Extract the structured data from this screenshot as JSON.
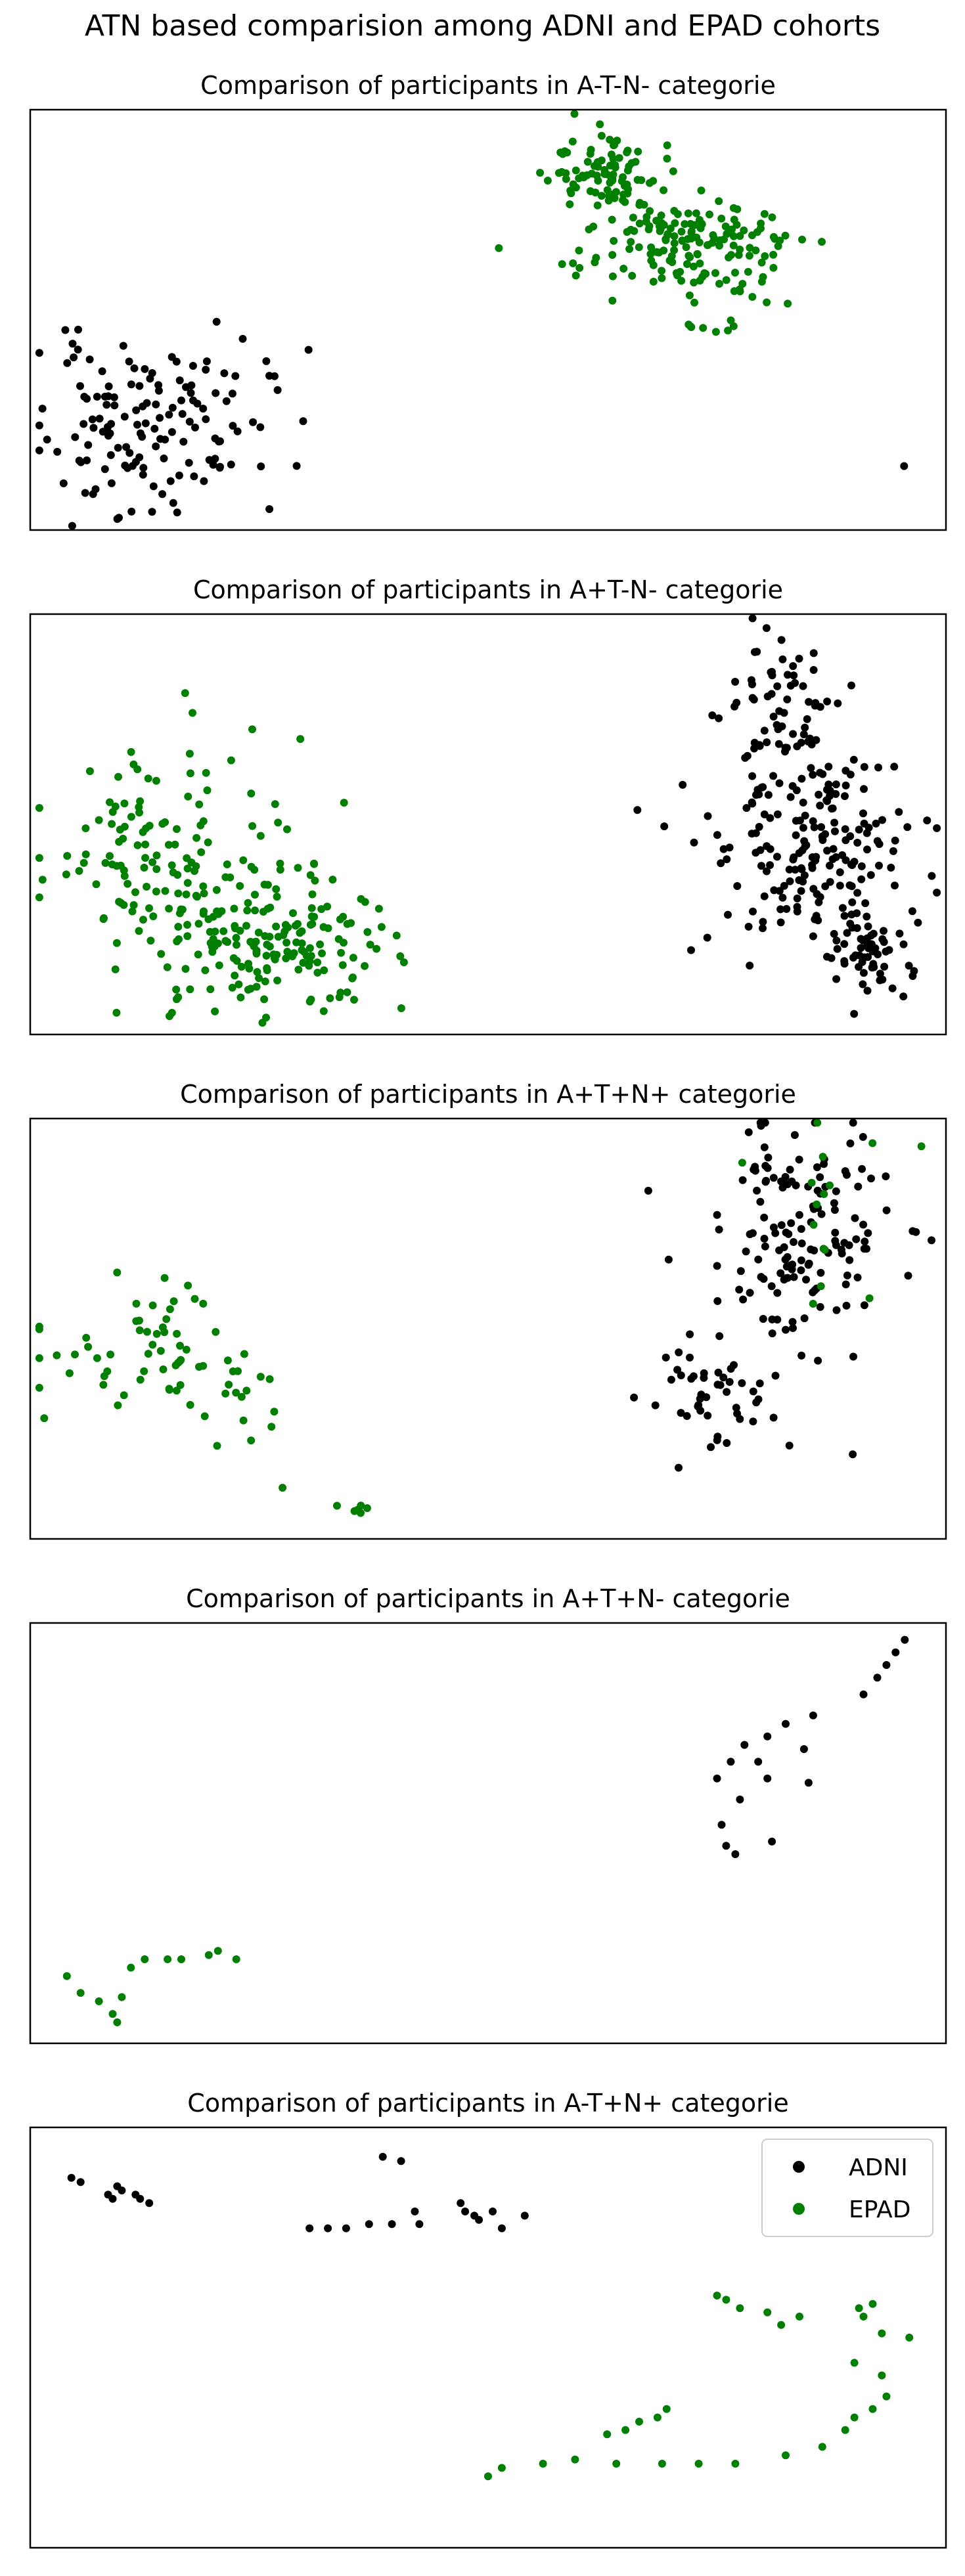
{
  "figure": {
    "title": "ATN based comparision among ADNI and EPAD cohorts"
  },
  "legend": {
    "items": [
      "ADNI",
      "EPAD"
    ],
    "placement": "upper-right"
  },
  "colors": {
    "ADNI": "#000000",
    "EPAD": "#007f00"
  },
  "chart_data": [
    {
      "type": "scatter",
      "title": "Comparison of participants in A-T-N- categorie",
      "xlim": [
        0,
        100
      ],
      "ylim": [
        0,
        100
      ],
      "grid": false,
      "ticks": false,
      "series": [
        {
          "name": "ADNI",
          "color": "#000000",
          "clusters": [
            {
              "cx": 13,
              "cy": 25,
              "sx": 6,
              "sy": 10,
              "n": 140,
              "seed": 11
            },
            {
              "cx": 14.5,
              "cy": 5,
              "sx": 0.8,
              "sy": 1.5,
              "n": 4,
              "seed": 12
            },
            {
              "cx": 95.5,
              "cy": 15,
              "sx": 0.1,
              "sy": 0.1,
              "n": 1,
              "seed": 13
            }
          ]
        },
        {
          "name": "EPAD",
          "color": "#007f00",
          "clusters": [
            {
              "cx": 63,
              "cy": 85,
              "sx": 3,
              "sy": 5,
              "n": 90,
              "seed": 14
            },
            {
              "cx": 72,
              "cy": 68,
              "sx": 6,
              "sy": 6,
              "n": 160,
              "seed": 15
            },
            {
              "cx": 74,
              "cy": 48,
              "sx": 1.5,
              "sy": 1.5,
              "n": 8,
              "seed": 16
            }
          ]
        }
      ]
    },
    {
      "type": "scatter",
      "title": "Comparison of participants in A+T-N- categorie",
      "xlim": [
        0,
        100
      ],
      "ylim": [
        0,
        100
      ],
      "grid": false,
      "ticks": false,
      "series": [
        {
          "name": "ADNI",
          "color": "#000000",
          "clusters": [
            {
              "cx": 82,
              "cy": 78,
              "sx": 3,
              "sy": 10,
              "n": 60,
              "seed": 21
            },
            {
              "cx": 85,
              "cy": 45,
              "sx": 6,
              "sy": 12,
              "n": 200,
              "seed": 22
            },
            {
              "cx": 91,
              "cy": 18,
              "sx": 2.5,
              "sy": 5,
              "n": 45,
              "seed": 23
            }
          ]
        },
        {
          "name": "EPAD",
          "color": "#007f00",
          "clusters": [
            {
              "cx": 14,
              "cy": 40,
              "sx": 7,
              "sy": 13,
              "n": 150,
              "seed": 24
            },
            {
              "cx": 27,
              "cy": 20,
              "sx": 6,
              "sy": 8,
              "n": 150,
              "seed": 25
            }
          ]
        }
      ]
    },
    {
      "type": "scatter",
      "title": "Comparison of participants in A+T+N+ categorie",
      "xlim": [
        0,
        100
      ],
      "ylim": [
        0,
        100
      ],
      "grid": false,
      "ticks": false,
      "series": [
        {
          "name": "ADNI",
          "color": "#000000",
          "clusters": [
            {
              "cx": 84,
              "cy": 72,
              "sx": 5,
              "sy": 14,
              "n": 150,
              "seed": 31
            },
            {
              "cx": 75,
              "cy": 34,
              "sx": 4,
              "sy": 6,
              "n": 45,
              "seed": 32
            }
          ]
        },
        {
          "name": "EPAD",
          "color": "#007f00",
          "clusters": [
            {
              "cx": 12,
              "cy": 45,
              "sx": 6,
              "sy": 7,
              "n": 55,
              "seed": 33
            },
            {
              "cx": 23,
              "cy": 35,
              "sx": 2.5,
              "sy": 8,
              "n": 18,
              "seed": 34
            },
            {
              "cx": 36,
              "cy": 7,
              "sx": 0.8,
              "sy": 1.5,
              "n": 6,
              "seed": 35
            },
            {
              "cx": 85,
              "cy": 70,
              "sx": 6,
              "sy": 14,
              "n": 15,
              "seed": 36
            }
          ]
        }
      ]
    },
    {
      "type": "scatter",
      "title": "Comparison of participants in A+T+N- categorie",
      "xlim": [
        0,
        100
      ],
      "ylim": [
        0,
        100
      ],
      "grid": false,
      "ticks": false,
      "series": [
        {
          "name": "ADNI",
          "color": "#000000",
          "points": [
            [
              95.5,
              96
            ],
            [
              94.5,
              93
            ],
            [
              93.5,
              90
            ],
            [
              92.5,
              87
            ],
            [
              91,
              83
            ],
            [
              85.5,
              78
            ],
            [
              82.5,
              76
            ],
            [
              80.5,
              73
            ],
            [
              78,
              71
            ],
            [
              84.5,
              70
            ],
            [
              79.5,
              67
            ],
            [
              76.5,
              67
            ],
            [
              80.5,
              63
            ],
            [
              75,
              63
            ],
            [
              85,
              62
            ],
            [
              77.5,
              58
            ],
            [
              75.5,
              52
            ],
            [
              81,
              48
            ],
            [
              76,
              47
            ],
            [
              77,
              45
            ]
          ]
        },
        {
          "name": "EPAD",
          "color": "#007f00",
          "points": [
            [
              4,
              16
            ],
            [
              5.5,
              12
            ],
            [
              7.5,
              10
            ],
            [
              9,
              7
            ],
            [
              9.5,
              5
            ],
            [
              10,
              11
            ],
            [
              11,
              18
            ],
            [
              12.5,
              20
            ],
            [
              15,
              20
            ],
            [
              16.5,
              20
            ],
            [
              19.5,
              21
            ],
            [
              20.5,
              22
            ],
            [
              22.5,
              20
            ]
          ]
        }
      ]
    },
    {
      "type": "scatter",
      "title": "Comparison of participants in A-T+N+ categorie",
      "xlim": [
        0,
        100
      ],
      "ylim": [
        0,
        100
      ],
      "grid": false,
      "ticks": false,
      "series": [
        {
          "name": "ADNI",
          "color": "#000000",
          "points": [
            [
              4.5,
              88
            ],
            [
              5.5,
              87
            ],
            [
              8.5,
              84
            ],
            [
              9,
              83
            ],
            [
              9.5,
              86
            ],
            [
              10,
              85
            ],
            [
              11.5,
              84
            ],
            [
              12,
              83
            ],
            [
              13,
              82
            ],
            [
              38.5,
              93
            ],
            [
              40.5,
              92
            ],
            [
              30.5,
              76
            ],
            [
              32.5,
              76
            ],
            [
              34.5,
              76
            ],
            [
              37,
              77
            ],
            [
              39.5,
              77
            ],
            [
              42,
              80
            ],
            [
              42.5,
              77
            ],
            [
              47,
              82
            ],
            [
              47.5,
              80
            ],
            [
              48.5,
              79
            ],
            [
              49,
              78
            ],
            [
              50.5,
              80
            ],
            [
              51.5,
              76
            ],
            [
              54,
              79
            ]
          ]
        },
        {
          "name": "EPAD",
          "color": "#007f00",
          "points": [
            [
              75,
              60
            ],
            [
              76,
              59
            ],
            [
              77.5,
              57
            ],
            [
              80.5,
              56
            ],
            [
              82,
              53
            ],
            [
              84,
              55
            ],
            [
              90.5,
              57
            ],
            [
              92,
              58
            ],
            [
              91,
              55
            ],
            [
              93,
              51
            ],
            [
              96,
              50
            ],
            [
              90,
              44
            ],
            [
              93,
              41
            ],
            [
              93.5,
              36
            ],
            [
              92,
              33
            ],
            [
              90,
              31
            ],
            [
              89,
              28
            ],
            [
              86.5,
              24
            ],
            [
              82.5,
              22
            ],
            [
              77,
              20
            ],
            [
              73,
              20
            ],
            [
              69,
              20
            ],
            [
              64,
              20
            ],
            [
              59.5,
              21
            ],
            [
              56,
              20
            ],
            [
              51.5,
              19
            ],
            [
              50,
              17
            ],
            [
              69.5,
              33
            ],
            [
              68.5,
              31
            ],
            [
              66.5,
              30
            ],
            [
              65,
              28
            ],
            [
              63,
              27
            ]
          ]
        }
      ]
    }
  ]
}
